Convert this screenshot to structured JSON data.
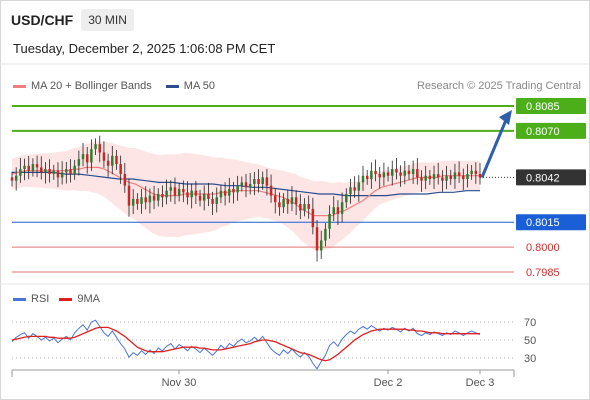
{
  "header": {
    "symbol": "USD/CHF",
    "interval": "30 MIN",
    "datetime": "Tuesday, December 2, 2025 1:06:08 PM CET"
  },
  "legend": {
    "items": [
      {
        "label": "MA 20 + Bollinger Bands",
        "color": "#f08080"
      },
      {
        "label": "MA 50",
        "color": "#2b4d8f"
      }
    ],
    "credit": "Research © 2025 Trading Central"
  },
  "rsi_legend": {
    "items": [
      {
        "label": "RSI",
        "color": "#4a74d9"
      },
      {
        "label": "9MA",
        "color": "#e02020"
      }
    ]
  },
  "colors": {
    "up": "#2e7d32",
    "down": "#c62828",
    "green_level": "#4caf1a",
    "blue_level": "#1a5fd6",
    "red_level": "#e57373",
    "current": "#333333",
    "band_fill": "#fde0e0",
    "arrow": "#2e5fa8"
  },
  "chart_data": [
    {
      "type": "candlestick",
      "ylim": [
        0.7982,
        0.8091
      ],
      "x_labels": [
        "Nov 30",
        "Dec 2",
        "Dec 3"
      ],
      "price_levels": [
        {
          "value": 0.8085,
          "label": "0.8085",
          "kind": "resistance"
        },
        {
          "value": 0.807,
          "label": "0.8070",
          "kind": "resistance"
        },
        {
          "value": 0.8042,
          "label": "0.8042",
          "kind": "current"
        },
        {
          "value": 0.8015,
          "label": "0.8015",
          "kind": "support"
        },
        {
          "value": 0.8,
          "label": "0.8000",
          "kind": "support-minor"
        },
        {
          "value": 0.7985,
          "label": "0.7985",
          "kind": "support-minor"
        }
      ],
      "close_series": [
        0.804,
        0.8043,
        0.8047,
        0.8049,
        0.8046,
        0.805,
        0.8048,
        0.8045,
        0.8047,
        0.8044,
        0.8046,
        0.8042,
        0.8045,
        0.8047,
        0.8044,
        0.8049,
        0.8053,
        0.8056,
        0.8051,
        0.8059,
        0.8062,
        0.8057,
        0.8052,
        0.8049,
        0.8055,
        0.805,
        0.8044,
        0.8037,
        0.8025,
        0.8029,
        0.8026,
        0.803,
        0.8027,
        0.8031,
        0.8028,
        0.8032,
        0.803,
        0.8034,
        0.8036,
        0.8031,
        0.8035,
        0.8033,
        0.803,
        0.8034,
        0.8031,
        0.8028,
        0.8032,
        0.8029,
        0.8026,
        0.803,
        0.8034,
        0.8031,
        0.8035,
        0.8033,
        0.8037,
        0.8039,
        0.8036,
        0.8038,
        0.8041,
        0.8038,
        0.8042,
        0.8037,
        0.8031,
        0.8027,
        0.8024,
        0.8029,
        0.8026,
        0.803,
        0.8026,
        0.8022,
        0.8026,
        0.8023,
        0.8012,
        0.7998,
        0.8004,
        0.8011,
        0.802,
        0.8024,
        0.802,
        0.8027,
        0.8032,
        0.8036,
        0.8034,
        0.8039,
        0.8043,
        0.8041,
        0.8046,
        0.8044,
        0.8042,
        0.8045,
        0.8043,
        0.8047,
        0.8045,
        0.8043,
        0.8046,
        0.8044,
        0.8047,
        0.8042,
        0.804,
        0.8043,
        0.8041,
        0.8044,
        0.8042,
        0.804,
        0.8043,
        0.8041,
        0.8045,
        0.8043,
        0.8041,
        0.8044,
        0.8046,
        0.8044,
        0.8042
      ],
      "ma20_series": [
        0.8044,
        0.8045,
        0.8046,
        0.8046,
        0.8046,
        0.8046,
        0.8046,
        0.8046,
        0.8046,
        0.8046,
        0.8047,
        0.8047,
        0.8048,
        0.8048,
        0.8048,
        0.8047,
        0.8045,
        0.8043,
        0.8041,
        0.8039,
        0.8038,
        0.8036,
        0.8034,
        0.8032,
        0.8031,
        0.8031,
        0.8031,
        0.8031,
        0.8032,
        0.8032,
        0.8032,
        0.8032,
        0.8032,
        0.8032,
        0.8033,
        0.8033,
        0.8034,
        0.8034,
        0.8034,
        0.8034,
        0.8034,
        0.8033,
        0.8032,
        0.8031,
        0.803,
        0.8028,
        0.8026,
        0.8023,
        0.8021,
        0.8019,
        0.8019,
        0.8019,
        0.8019,
        0.8021,
        0.8022,
        0.8024,
        0.8026,
        0.8028,
        0.8031,
        0.8034,
        0.8036,
        0.8037,
        0.8038,
        0.8039,
        0.804,
        0.8041,
        0.8042,
        0.8042,
        0.8042,
        0.8042,
        0.8043,
        0.8043,
        0.8043,
        0.8043,
        0.8043,
        0.8043,
        0.8043
      ],
      "ma50_series": [
        0.8045,
        0.8045,
        0.8045,
        0.8045,
        0.8044,
        0.8044,
        0.8043,
        0.8042,
        0.8041,
        0.8041,
        0.804,
        0.8039,
        0.8039,
        0.8038,
        0.8038,
        0.8038,
        0.8037,
        0.8037,
        0.8036,
        0.8036,
        0.8035,
        0.8034,
        0.8033,
        0.8032,
        0.8032,
        0.8031,
        0.8031,
        0.8031,
        0.8031,
        0.8032,
        0.8032,
        0.8032,
        0.8033,
        0.8033,
        0.8034,
        0.8034
      ]
    },
    {
      "type": "line",
      "title": "RSI",
      "ylim": [
        20,
        80
      ],
      "y_ticks": [
        70,
        50,
        30
      ],
      "series": [
        {
          "name": "RSI",
          "values": [
            48,
            53,
            56,
            58,
            52,
            57,
            54,
            50,
            53,
            49,
            52,
            47,
            51,
            54,
            50,
            58,
            63,
            67,
            61,
            70,
            72,
            65,
            58,
            54,
            60,
            53,
            46,
            40,
            31,
            36,
            33,
            38,
            34,
            39,
            35,
            41,
            38,
            43,
            46,
            40,
            45,
            42,
            38,
            43,
            40,
            36,
            41,
            37,
            33,
            38,
            44,
            40,
            46,
            43,
            48,
            51,
            47,
            49,
            53,
            49,
            54,
            47,
            40,
            36,
            33,
            39,
            35,
            40,
            35,
            31,
            36,
            32,
            24,
            18,
            26,
            33,
            44,
            48,
            43,
            51,
            56,
            60,
            57,
            62,
            65,
            62,
            66,
            63,
            60,
            63,
            61,
            64,
            62,
            59,
            63,
            60,
            63,
            57,
            55,
            58,
            56,
            59,
            57,
            55,
            58,
            56,
            60,
            58,
            55,
            58,
            60,
            58,
            56
          ]
        },
        {
          "name": "9MA",
          "values": [
            50,
            51,
            52,
            53,
            54,
            54,
            54,
            54,
            54,
            53,
            53,
            52,
            52,
            52,
            52,
            53,
            55,
            57,
            59,
            61,
            63,
            64,
            64,
            64,
            62,
            60,
            57,
            54,
            50,
            46,
            42,
            40,
            38,
            37,
            37,
            37,
            37,
            38,
            39,
            40,
            41,
            42,
            42,
            42,
            42,
            41,
            41,
            40,
            39,
            39,
            39,
            40,
            41,
            42,
            43,
            44,
            45,
            46,
            48,
            49,
            50,
            50,
            49,
            48,
            46,
            44,
            42,
            40,
            38,
            36,
            35,
            34,
            32,
            30,
            28,
            27,
            28,
            31,
            34,
            38,
            42,
            46,
            50,
            53,
            56,
            58,
            60,
            61,
            62,
            62,
            62,
            62,
            62,
            62,
            62,
            61,
            61,
            60,
            60,
            59,
            58,
            58,
            58,
            57,
            57,
            57,
            57,
            57,
            57,
            57,
            57,
            57,
            57
          ]
        }
      ]
    }
  ]
}
